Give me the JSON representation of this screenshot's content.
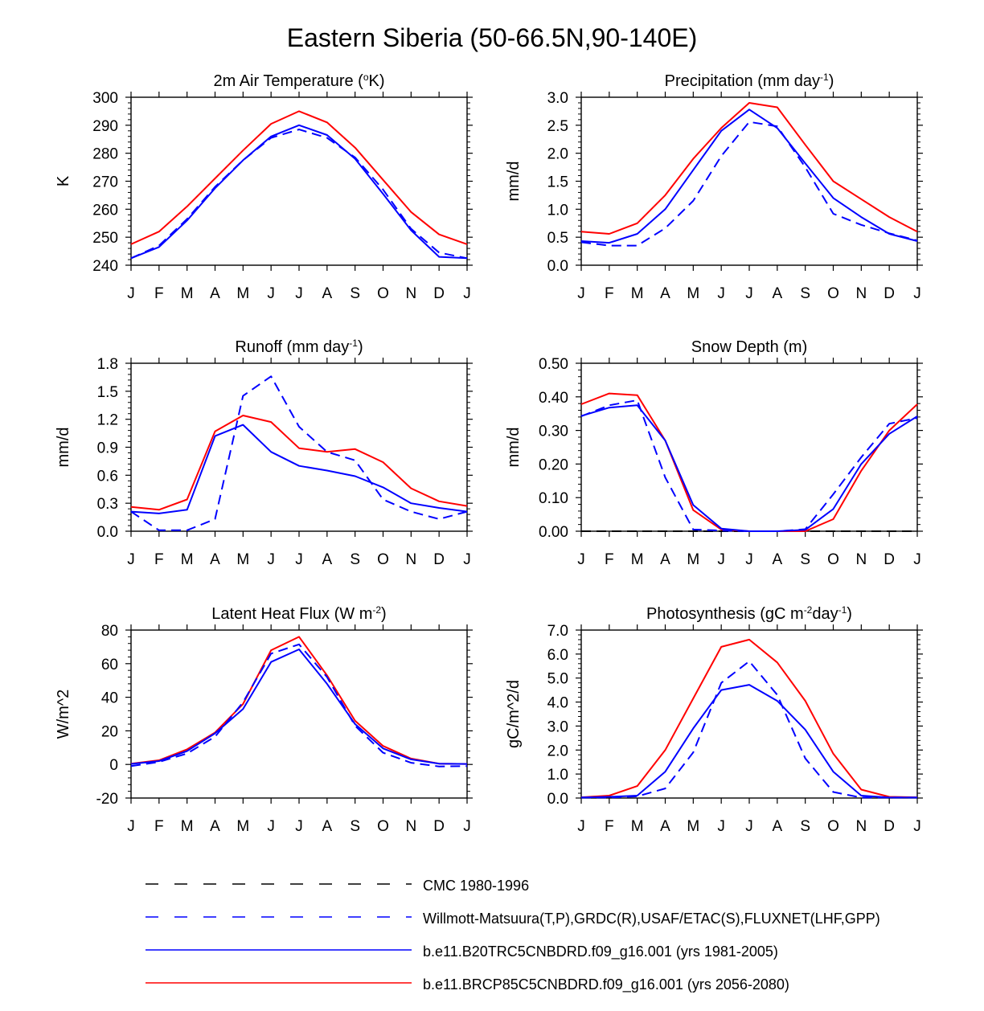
{
  "figure": {
    "title": "Eastern Siberia (50-66.5N,90-140E)"
  },
  "colors": {
    "red": "#ff0000",
    "blue": "#0000ff",
    "black": "#000000"
  },
  "months": [
    "J",
    "F",
    "M",
    "A",
    "M",
    "J",
    "J",
    "A",
    "S",
    "O",
    "N",
    "D",
    "J"
  ],
  "legend": [
    {
      "label": "CMC 1980-1996",
      "color": "#000000",
      "dash": true
    },
    {
      "label": "Willmott-Matsuura(T,P),GRDC(R),USAF/ETAC(S),FLUXNET(LHF,GPP)",
      "color": "#0000ff",
      "dash": true
    },
    {
      "label": "b.e11.B20TRC5CNBDRD.f09_g16.001 (yrs 1981-2005)",
      "color": "#0000ff",
      "dash": false
    },
    {
      "label": "b.e11.BRCP85C5CNBDRD.f09_g16.001 (yrs 2056-2080)",
      "color": "#ff0000",
      "dash": false
    }
  ],
  "chart_data": [
    {
      "type": "line",
      "title_main": "2m Air Temperature (",
      "title_sup": "o",
      "title_end": "K)",
      "ylabel": "K",
      "ylim": [
        240,
        300
      ],
      "yticks": [
        "240",
        "250",
        "260",
        "270",
        "280",
        "290",
        "300"
      ],
      "series": [
        {
          "name": "b.e11.BRCP85C5CNBDRD.f09_g16.001 (yrs 2056-2080)",
          "color": "#ff0000",
          "dash": false,
          "values": [
            247.5,
            252,
            261,
            271,
            281,
            290.5,
            295,
            291,
            282,
            270.5,
            259,
            251,
            247.5
          ]
        },
        {
          "name": "b.e11.B20TRC5CNBDRD.f09_g16.001 (yrs 1981-2005)",
          "color": "#0000ff",
          "dash": false,
          "values": [
            242.5,
            246.5,
            256,
            267.5,
            277.5,
            286,
            290,
            286.5,
            278,
            265.5,
            252.5,
            243,
            242.5
          ]
        },
        {
          "name": "Willmott-Matsuura(T,P),GRDC(R),USAF/ETAC(S),FLUXNET(LHF,GPP)",
          "color": "#0000ff",
          "dash": true,
          "values": [
            242.5,
            247,
            256.5,
            268,
            277.5,
            285.5,
            288.5,
            285.5,
            278.5,
            267,
            253,
            244.5,
            242.5
          ]
        }
      ]
    },
    {
      "type": "line",
      "title_main": "Precipitation (mm day",
      "title_sup": "-1",
      "title_end": ")",
      "ylabel": "mm/d",
      "ylim": [
        0,
        3
      ],
      "yticks": [
        "0.0",
        "0.5",
        "1.0",
        "1.5",
        "2.0",
        "2.5",
        "3.0"
      ],
      "series": [
        {
          "name": "b.e11.BRCP85C5CNBDRD.f09_g16.001 (yrs 2056-2080)",
          "color": "#ff0000",
          "dash": false,
          "values": [
            0.6,
            0.56,
            0.75,
            1.25,
            1.9,
            2.45,
            2.9,
            2.82,
            2.15,
            1.5,
            1.18,
            0.86,
            0.6
          ]
        },
        {
          "name": "b.e11.B20TRC5CNBDRD.f09_g16.001 (yrs 1981-2005)",
          "color": "#0000ff",
          "dash": false,
          "values": [
            0.43,
            0.4,
            0.56,
            1.0,
            1.7,
            2.4,
            2.78,
            2.45,
            1.82,
            1.2,
            0.86,
            0.56,
            0.43
          ]
        },
        {
          "name": "Willmott-Matsuura(T,P),GRDC(R),USAF/ETAC(S),FLUXNET(LHF,GPP)",
          "color": "#0000ff",
          "dash": true,
          "values": [
            0.41,
            0.35,
            0.35,
            0.66,
            1.15,
            1.95,
            2.56,
            2.48,
            1.75,
            0.92,
            0.72,
            0.57,
            0.44
          ]
        }
      ]
    },
    {
      "type": "line",
      "title_main": "Runoff (mm day",
      "title_sup": "-1",
      "title_end": ")",
      "ylabel": "mm/d",
      "ylim": [
        0,
        1.8
      ],
      "yticks": [
        "0.0",
        "0.3",
        "0.6",
        "0.9",
        "1.2",
        "1.5",
        "1.8"
      ],
      "series": [
        {
          "name": "b.e11.BRCP85C5CNBDRD.f09_g16.001 (yrs 2056-2080)",
          "color": "#ff0000",
          "dash": false,
          "values": [
            0.26,
            0.23,
            0.34,
            1.07,
            1.24,
            1.17,
            0.89,
            0.85,
            0.88,
            0.74,
            0.46,
            0.32,
            0.27
          ]
        },
        {
          "name": "b.e11.B20TRC5CNBDRD.f09_g16.001 (yrs 1981-2005)",
          "color": "#0000ff",
          "dash": false,
          "values": [
            0.21,
            0.19,
            0.23,
            1.02,
            1.14,
            0.85,
            0.7,
            0.65,
            0.59,
            0.47,
            0.3,
            0.25,
            0.21
          ]
        },
        {
          "name": "Willmott-Matsuura(T,P),GRDC(R),USAF/ETAC(S),FLUXNET(LHF,GPP)",
          "color": "#0000ff",
          "dash": true,
          "values": [
            0.21,
            0.01,
            0.01,
            0.13,
            1.45,
            1.66,
            1.12,
            0.85,
            0.76,
            0.34,
            0.21,
            0.13,
            0.21
          ]
        }
      ]
    },
    {
      "type": "line",
      "title_main": "Snow Depth (m)",
      "title_sup": "",
      "title_end": "",
      "ylabel": "mm/d",
      "ylim": [
        0,
        0.5
      ],
      "yticks": [
        "0.00",
        "0.10",
        "0.20",
        "0.30",
        "0.40",
        "0.50"
      ],
      "series": [
        {
          "name": "CMC 1980-1996",
          "color": "#000000",
          "dash": true,
          "values": [
            0,
            0,
            0,
            0,
            0,
            0,
            0,
            0,
            0,
            0,
            0,
            0,
            0
          ]
        },
        {
          "name": "b.e11.BRCP85C5CNBDRD.f09_g16.001 (yrs 2056-2080)",
          "color": "#ff0000",
          "dash": false,
          "values": [
            0.378,
            0.41,
            0.405,
            0.27,
            0.063,
            0.005,
            0,
            0,
            0,
            0.036,
            0.18,
            0.3,
            0.378
          ]
        },
        {
          "name": "b.e11.B20TRC5CNBDRD.f09_g16.001 (yrs 1981-2005)",
          "color": "#0000ff",
          "dash": false,
          "values": [
            0.343,
            0.368,
            0.375,
            0.27,
            0.078,
            0.008,
            0,
            0,
            0.004,
            0.066,
            0.2,
            0.29,
            0.342
          ]
        },
        {
          "name": "Willmott-Matsuura(T,P),GRDC(R),USAF/ETAC(S),FLUXNET(LHF,GPP)",
          "color": "#0000ff",
          "dash": true,
          "values": [
            0.342,
            0.375,
            0.39,
            0.16,
            0.005,
            0.002,
            0,
            0,
            0.006,
            0.11,
            0.22,
            0.32,
            0.337
          ]
        }
      ]
    },
    {
      "type": "line",
      "title_main": "Latent Heat Flux (W m",
      "title_sup": "-2",
      "title_end": ")",
      "ylabel": "W/m^2",
      "ylim": [
        -20,
        80
      ],
      "yticks": [
        "-20",
        "0",
        "20",
        "40",
        "60",
        "80"
      ],
      "series": [
        {
          "name": "b.e11.BRCP85C5CNBDRD.f09_g16.001 (yrs 2056-2080)",
          "color": "#ff0000",
          "dash": false,
          "values": [
            0.5,
            2.5,
            9,
            19,
            36,
            68,
            76,
            53,
            26,
            11,
            3.5,
            0.5,
            0.3
          ]
        },
        {
          "name": "b.e11.B20TRC5CNBDRD.f09_g16.001 (yrs 1981-2005)",
          "color": "#0000ff",
          "dash": false,
          "values": [
            0.3,
            2,
            8,
            18.5,
            33,
            61,
            68.5,
            48,
            24,
            9.5,
            3,
            0.5,
            0.3
          ]
        },
        {
          "name": "Willmott-Matsuura(T,P),GRDC(R),USAF/ETAC(S),FLUXNET(LHF,GPP)",
          "color": "#0000ff",
          "dash": true,
          "values": [
            -1,
            1.5,
            6.5,
            16.5,
            37,
            66,
            71.5,
            52,
            23,
            7,
            1,
            -1.2,
            -1
          ]
        }
      ]
    },
    {
      "type": "line",
      "title_main": "Photosynthesis (gC m",
      "title_sup": "-2",
      "title_mid": "day",
      "title_sup2": "-1",
      "title_end": ")",
      "ylabel": "gC/m^2/d",
      "ylim": [
        0,
        7
      ],
      "yticks": [
        "0.0",
        "1.0",
        "2.0",
        "3.0",
        "4.0",
        "5.0",
        "6.0",
        "7.0"
      ],
      "series": [
        {
          "name": "b.e11.BRCP85C5CNBDRD.f09_g16.001 (yrs 2056-2080)",
          "color": "#ff0000",
          "dash": false,
          "values": [
            0.03,
            0.1,
            0.5,
            2.0,
            4.15,
            6.3,
            6.6,
            5.65,
            4.05,
            1.85,
            0.35,
            0.05,
            0.03
          ]
        },
        {
          "name": "b.e11.B20TRC5CNBDRD.f09_g16.001 (yrs 1981-2005)",
          "color": "#0000ff",
          "dash": false,
          "values": [
            0.02,
            0.05,
            0.1,
            1.1,
            2.9,
            4.5,
            4.72,
            4.05,
            2.85,
            1.1,
            0.1,
            0.02,
            0.02
          ]
        },
        {
          "name": "Willmott-Matsuura(T,P),GRDC(R),USAF/ETAC(S),FLUXNET(LHF,GPP)",
          "color": "#0000ff",
          "dash": true,
          "values": [
            0.02,
            0.02,
            0.07,
            0.4,
            1.9,
            4.8,
            5.7,
            4.3,
            1.65,
            0.25,
            0.02,
            0.02,
            0.02
          ]
        }
      ]
    }
  ]
}
